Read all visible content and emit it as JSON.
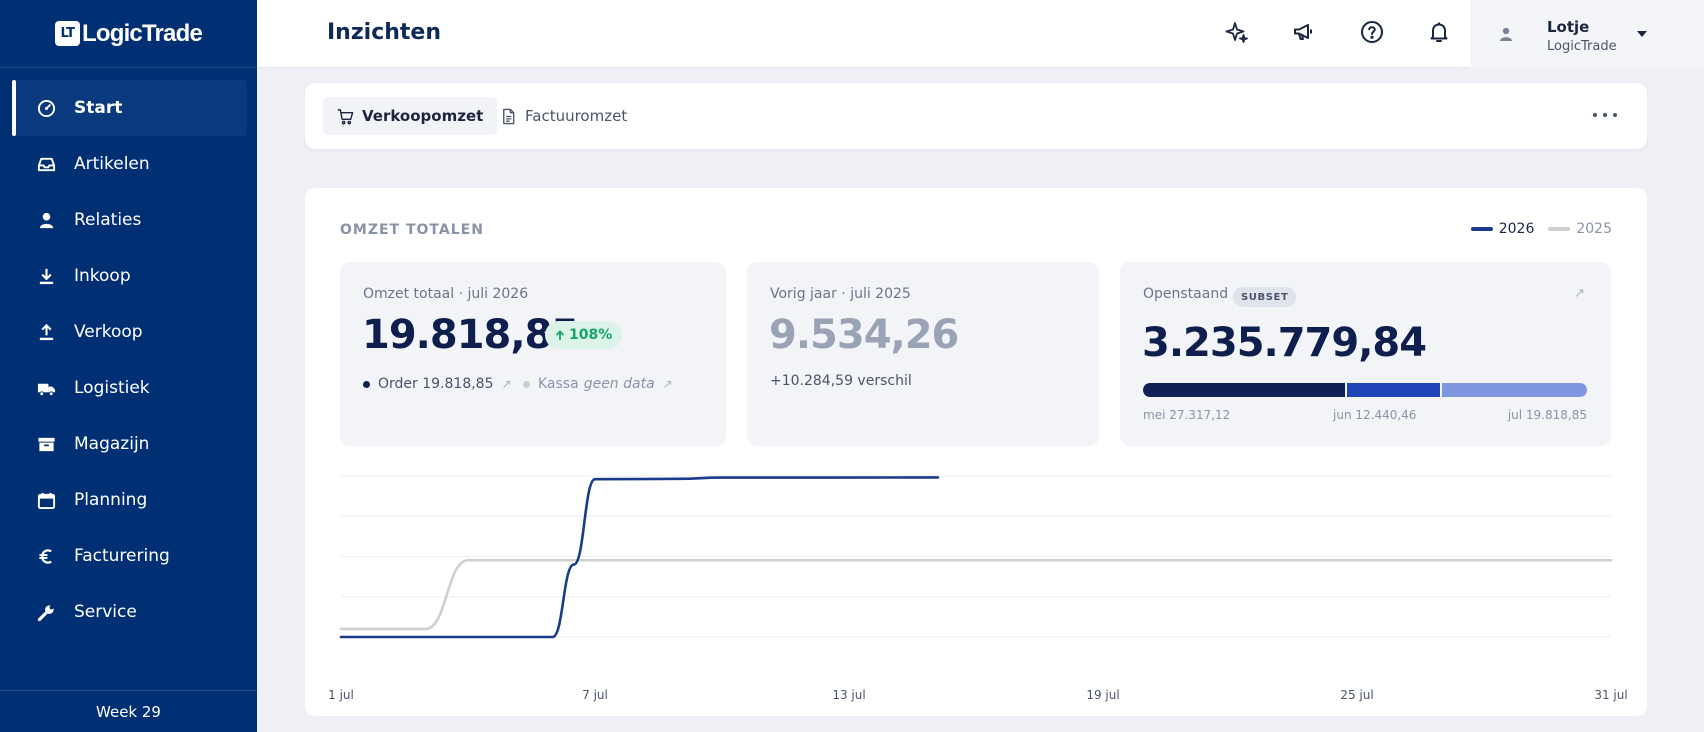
{
  "app": {
    "logo_mark": "LT",
    "logo_text": "LogicTrade",
    "week": "Week 29"
  },
  "sidebar": {
    "items": [
      {
        "label": "Start",
        "icon": "gauge-icon",
        "active": true
      },
      {
        "label": "Artikelen",
        "icon": "inbox-icon"
      },
      {
        "label": "Relaties",
        "icon": "user-icon"
      },
      {
        "label": "Inkoop",
        "icon": "download-icon"
      },
      {
        "label": "Verkoop",
        "icon": "upload-icon"
      },
      {
        "label": "Logistiek",
        "icon": "truck-icon"
      },
      {
        "label": "Magazijn",
        "icon": "archive-icon"
      },
      {
        "label": "Planning",
        "icon": "calendar-icon"
      },
      {
        "label": "Facturering",
        "icon": "euro-icon"
      },
      {
        "label": "Service",
        "icon": "wrench-icon"
      }
    ]
  },
  "header": {
    "title": "Inzichten",
    "user": {
      "name": "Lotje",
      "org": "LogicTrade"
    },
    "icons": [
      "sparkles-icon",
      "megaphone-icon",
      "help-icon",
      "bell-icon"
    ]
  },
  "tabs": [
    {
      "label": "Verkoopomzet",
      "icon": "cart-icon",
      "active": true
    },
    {
      "label": "Factuuromzet",
      "icon": "document-icon"
    }
  ],
  "card": {
    "title": "OMZET TOTALEN",
    "legend": [
      {
        "label": "2026",
        "color": "#1a3b8c"
      },
      {
        "label": "2025",
        "color": "#cfcfcf"
      }
    ],
    "kpi1": {
      "label": "Omzet totaal · juli 2026",
      "value": "19.818,85",
      "growth": "108%",
      "order_label": "Order 19.818,85",
      "kassa_label": "Kassa",
      "kassa_value": "geen data"
    },
    "kpi2": {
      "label": "Vorig jaar · juli 2025",
      "value": "9.534,26",
      "diff": "+10.284,59 verschil"
    },
    "kpi3": {
      "label": "Openstaand",
      "badge": "SUBSET",
      "value": "3.235.779,84",
      "segments": [
        {
          "label": "mei 27.317,12",
          "share": 0.46,
          "color": "#0f2057"
        },
        {
          "label": "jun 12.440,46",
          "share": 0.21,
          "color": "#1f45b8"
        },
        {
          "label": "jul 19.818,85",
          "share": 0.33,
          "color": "#7f97e0"
        }
      ]
    }
  },
  "colors": {
    "sidebar": "#003073",
    "accent": "#1a3b8c",
    "previous_year": "#cfcfcf",
    "growth": "#17a46a"
  },
  "chart_data": {
    "type": "line",
    "x_ticks": [
      "1 jul",
      "7 jul",
      "13 jul",
      "19 jul",
      "25 jul",
      "31 jul"
    ],
    "xlim": [
      1,
      31
    ],
    "ylim": [
      0,
      20000
    ],
    "grid": true,
    "legend_position": "top-right",
    "series": [
      {
        "name": "2026",
        "color": "#1a3b8c",
        "points": [
          [
            1,
            0
          ],
          [
            6,
            0
          ],
          [
            6.5,
            9000
          ],
          [
            7,
            19600
          ],
          [
            9,
            19650
          ],
          [
            10,
            19800
          ],
          [
            15.1,
            19818.85
          ]
        ]
      },
      {
        "name": "2025",
        "color": "#cfcfcf",
        "points": [
          [
            1,
            1000
          ],
          [
            3,
            1000
          ],
          [
            4,
            9534.26
          ],
          [
            31,
            9534.26
          ]
        ]
      }
    ]
  }
}
